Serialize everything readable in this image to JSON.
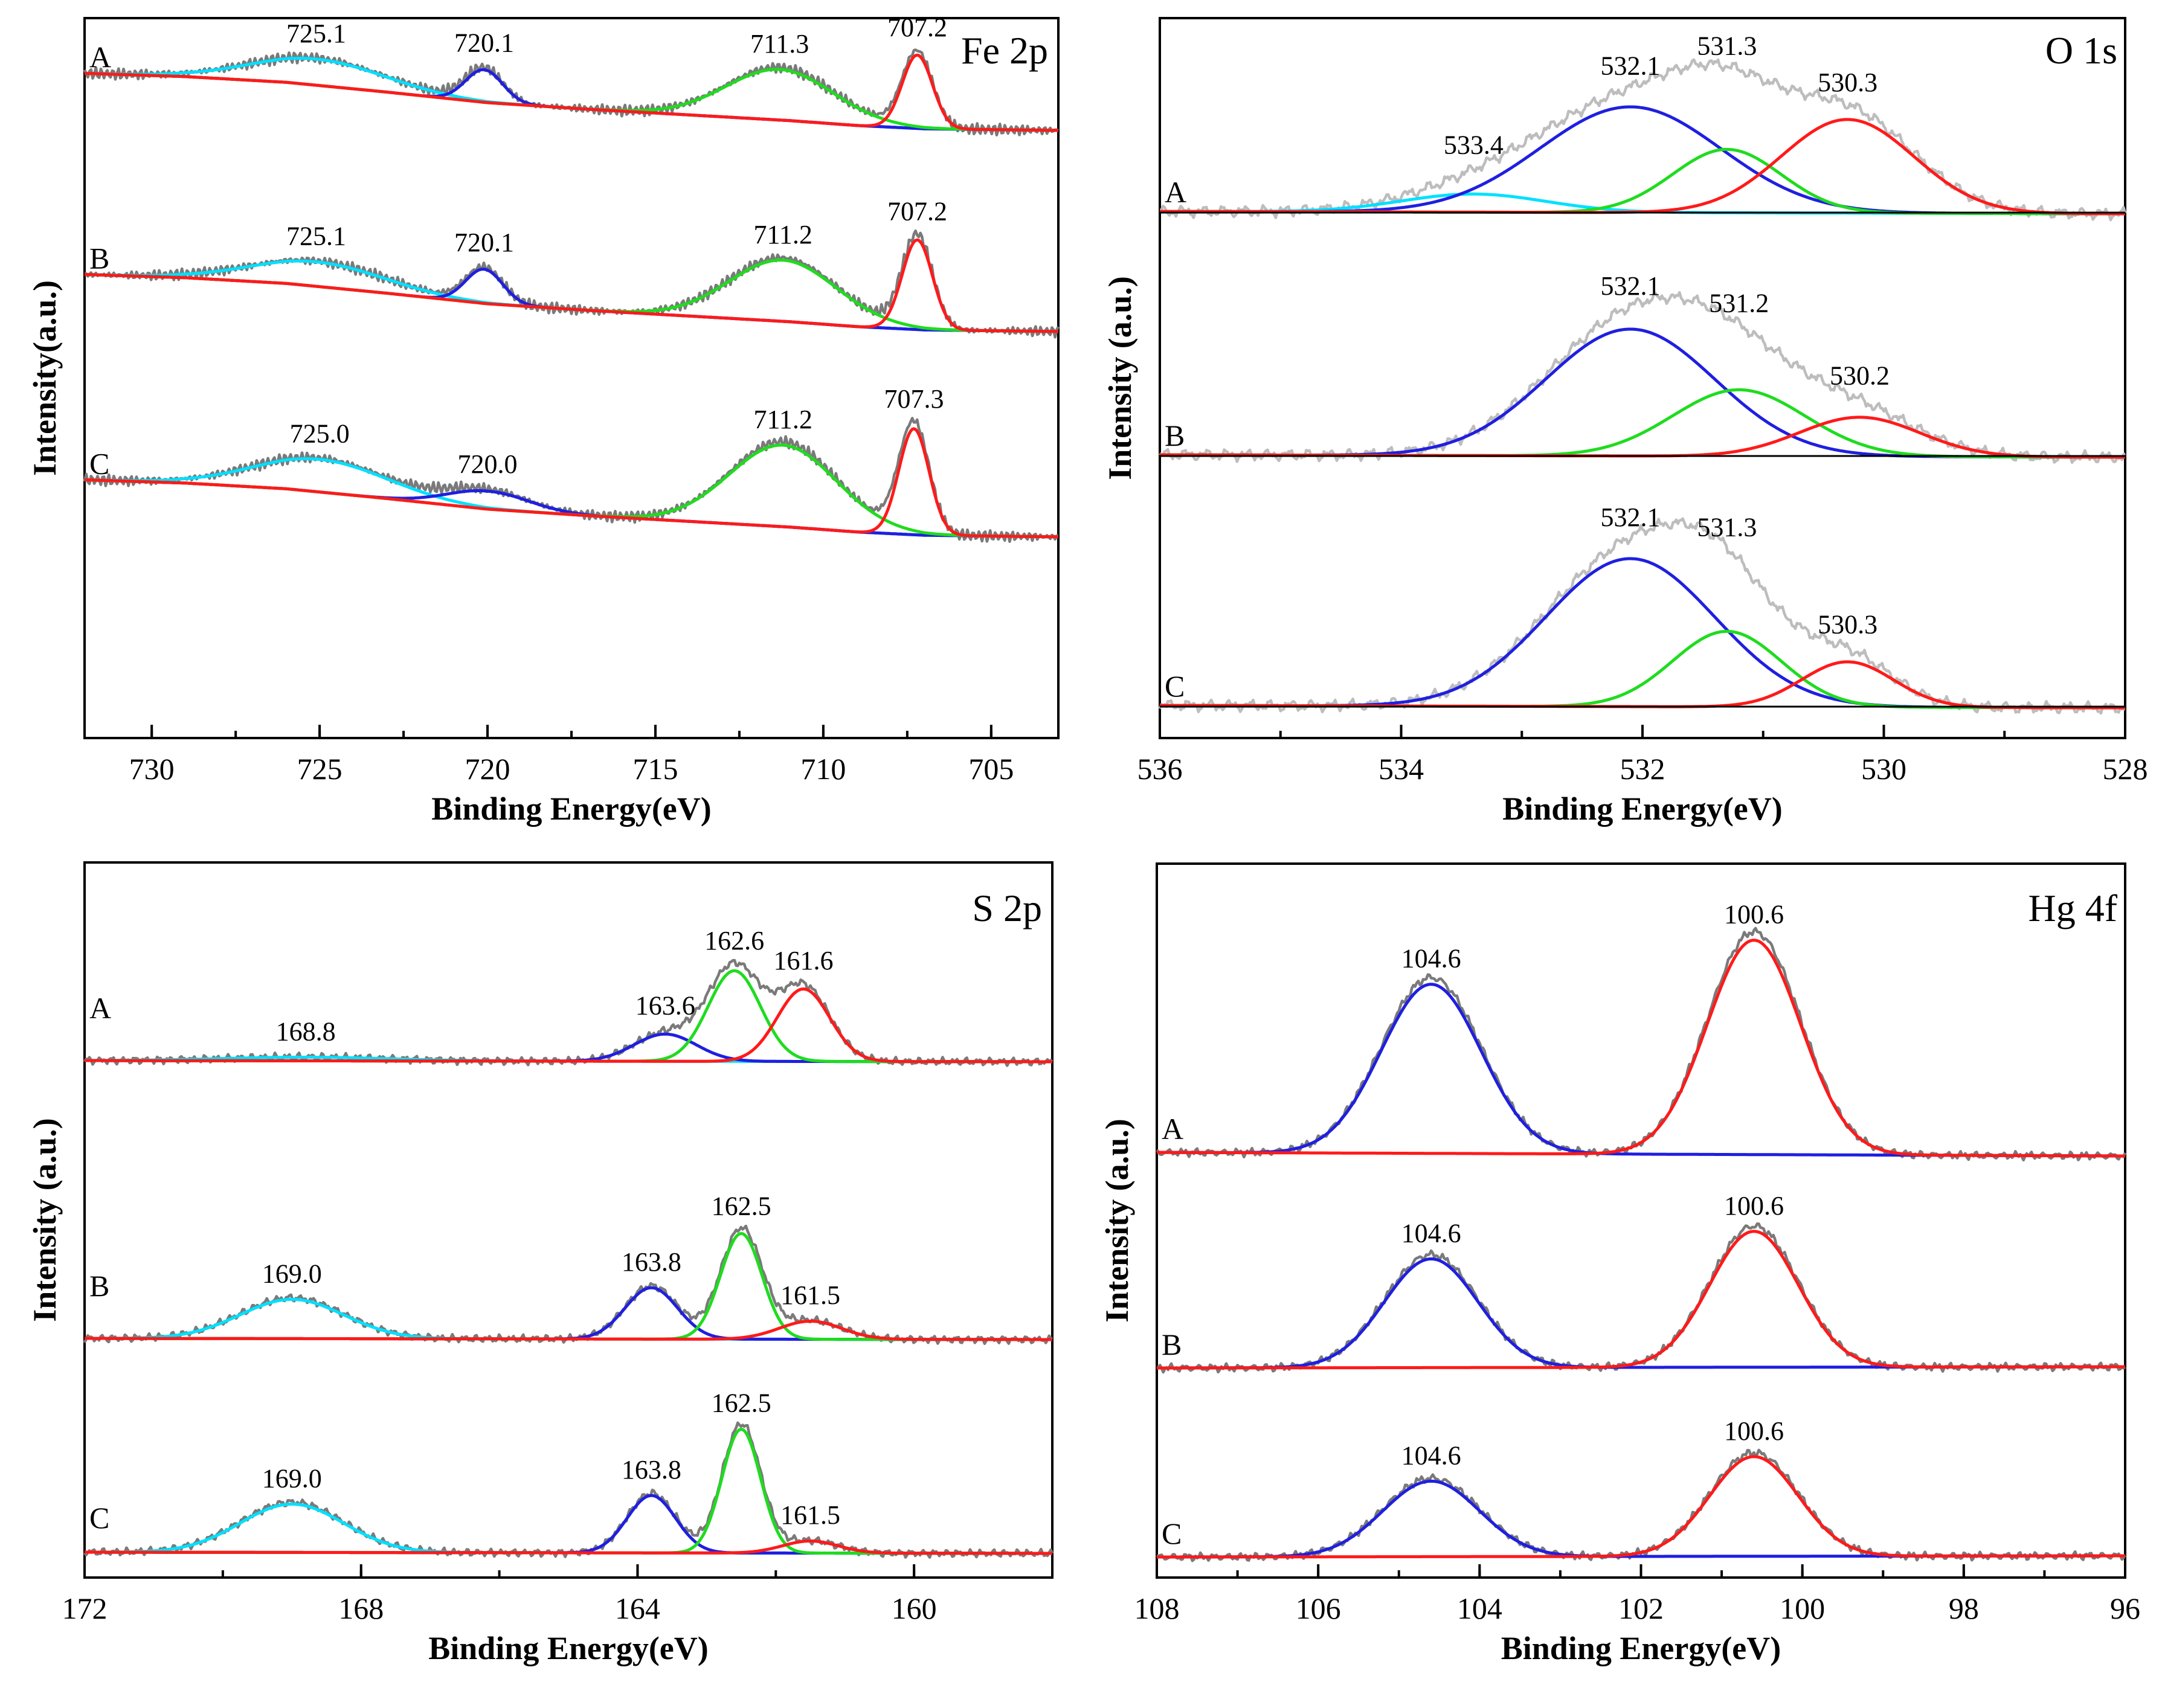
{
  "chart_data": [
    {
      "type": "line",
      "title": "Fe 2p",
      "xlabel": "Binding Energy(eV)",
      "ylabel": "Intensity(a.u.)",
      "xlim": [
        732,
        703
      ],
      "xticks": [
        730,
        725,
        720,
        715,
        710,
        705
      ],
      "rows": [
        {
          "name": "A",
          "background": [
            [
              732,
              0.56
            ],
            [
              729,
              0.52
            ],
            [
              726,
              0.45
            ],
            [
              723,
              0.33
            ],
            [
              720,
              0.2
            ],
            [
              717,
              0.12
            ],
            [
              714,
              0.05
            ],
            [
              711,
              -0.02
            ],
            [
              709,
              -0.08
            ],
            [
              707,
              -0.12
            ],
            [
              703,
              -0.14
            ]
          ],
          "peaks": [
            {
              "center": 725.1,
              "height": 0.32,
              "width": 2.0,
              "color": "#00e0ff"
            },
            {
              "center": 720.1,
              "height": 0.4,
              "width": 0.55,
              "color": "#1f1fe0"
            },
            {
              "center": 711.3,
              "height": 0.62,
              "width": 1.6,
              "color": "#1fdc1f"
            },
            {
              "center": 707.2,
              "height": 0.9,
              "width": 0.45,
              "color": "#ff1a1a"
            }
          ],
          "labels": [
            {
              "x": 725.1,
              "text": "725.1"
            },
            {
              "x": 720.1,
              "text": "720.1"
            },
            {
              "x": 711.3,
              "text": "711.3"
            },
            {
              "x": 707.2,
              "text": "707.2"
            }
          ]
        },
        {
          "name": "B",
          "background": [
            [
              732,
              0.56
            ],
            [
              729,
              0.52
            ],
            [
              726,
              0.45
            ],
            [
              723,
              0.33
            ],
            [
              720,
              0.2
            ],
            [
              717,
              0.12
            ],
            [
              714,
              0.05
            ],
            [
              711,
              -0.02
            ],
            [
              709,
              -0.08
            ],
            [
              707,
              -0.12
            ],
            [
              703,
              -0.14
            ]
          ],
          "peaks": [
            {
              "center": 725.1,
              "height": 0.3,
              "width": 2.0,
              "color": "#00e0ff"
            },
            {
              "center": 720.1,
              "height": 0.42,
              "width": 0.55,
              "color": "#1f1fe0"
            },
            {
              "center": 711.2,
              "height": 0.75,
              "width": 1.6,
              "color": "#1fdc1f"
            },
            {
              "center": 707.2,
              "height": 1.1,
              "width": 0.45,
              "color": "#ff1a1a"
            }
          ],
          "labels": [
            {
              "x": 725.1,
              "text": "725.1"
            },
            {
              "x": 720.1,
              "text": "720.1"
            },
            {
              "x": 711.2,
              "text": "711.2"
            },
            {
              "x": 707.2,
              "text": "707.2"
            }
          ]
        },
        {
          "name": "C",
          "background": [
            [
              732,
              0.56
            ],
            [
              729,
              0.52
            ],
            [
              726,
              0.45
            ],
            [
              723,
              0.33
            ],
            [
              720,
              0.2
            ],
            [
              717,
              0.12
            ],
            [
              714,
              0.05
            ],
            [
              711,
              -0.02
            ],
            [
              709,
              -0.08
            ],
            [
              707,
              -0.12
            ],
            [
              703,
              -0.14
            ]
          ],
          "peaks": [
            {
              "center": 725.0,
              "height": 0.4,
              "width": 2.0,
              "color": "#00e0ff"
            },
            {
              "center": 720.0,
              "height": 0.22,
              "width": 1.2,
              "color": "#1f1fe0"
            },
            {
              "center": 711.2,
              "height": 1.0,
              "width": 1.6,
              "color": "#1fdc1f"
            },
            {
              "center": 707.3,
              "height": 1.3,
              "width": 0.45,
              "color": "#ff1a1a"
            }
          ],
          "labels": [
            {
              "x": 725.0,
              "text": "725.0"
            },
            {
              "x": 720.0,
              "text": "720.0"
            },
            {
              "x": 711.2,
              "text": "711.2"
            },
            {
              "x": 707.3,
              "text": "707.3"
            }
          ]
        }
      ]
    },
    {
      "type": "line",
      "title": "O 1s",
      "xlabel": "Binding Energy(eV)",
      "ylabel": "Intensity (a.u.)",
      "xlim": [
        536,
        528
      ],
      "xticks": [
        536,
        534,
        532,
        530,
        528
      ],
      "rows": [
        {
          "name": "A",
          "background": [
            [
              536,
              0.02
            ],
            [
              528,
              -0.02
            ]
          ],
          "peaks": [
            {
              "center": 533.4,
              "height": 0.3,
              "width": 0.6,
              "color": "#00e0ff"
            },
            {
              "center": 532.1,
              "height": 1.75,
              "width": 0.75,
              "color": "#1f1fe0"
            },
            {
              "center": 531.3,
              "height": 1.05,
              "width": 0.45,
              "color": "#1fdc1f"
            },
            {
              "center": 530.3,
              "height": 1.55,
              "width": 0.55,
              "color": "#ff1a1a"
            }
          ],
          "labels": [
            {
              "x": 533.4,
              "text": "533.4"
            },
            {
              "x": 532.1,
              "text": "532.1"
            },
            {
              "x": 531.3,
              "text": "531.3"
            },
            {
              "x": 530.3,
              "text": "530.3"
            }
          ]
        },
        {
          "name": "B",
          "background": [
            [
              536,
              0.02
            ],
            [
              528,
              -0.02
            ]
          ],
          "peaks": [
            {
              "center": 532.1,
              "height": 2.1,
              "width": 0.7,
              "color": "#1f1fe0"
            },
            {
              "center": 531.2,
              "height": 1.1,
              "width": 0.55,
              "color": "#1fdc1f"
            },
            {
              "center": 530.2,
              "height": 0.65,
              "width": 0.5,
              "color": "#ff1a1a"
            }
          ],
          "labels": [
            {
              "x": 532.1,
              "text": "532.1"
            },
            {
              "x": 531.2,
              "text": "531.2"
            },
            {
              "x": 530.2,
              "text": "530.2"
            }
          ]
        },
        {
          "name": "C",
          "background": [
            [
              536,
              0.02
            ],
            [
              528,
              -0.02
            ]
          ],
          "peaks": [
            {
              "center": 532.1,
              "height": 2.45,
              "width": 0.7,
              "color": "#1f1fe0"
            },
            {
              "center": 531.3,
              "height": 1.25,
              "width": 0.45,
              "color": "#1fdc1f"
            },
            {
              "center": 530.3,
              "height": 0.75,
              "width": 0.38,
              "color": "#ff1a1a"
            }
          ],
          "labels": [
            {
              "x": 532.1,
              "text": "532.1"
            },
            {
              "x": 531.3,
              "text": "531.3"
            },
            {
              "x": 530.3,
              "text": "530.3"
            }
          ]
        }
      ]
    },
    {
      "type": "line",
      "title": "S 2p",
      "xlabel": "Binding Energy(eV)",
      "ylabel": "Intensity (a.u.)",
      "xlim": [
        172,
        158
      ],
      "xticks": [
        172,
        168,
        164,
        160
      ],
      "rows": [
        {
          "name": "A",
          "background": [
            [
              172,
              0.02
            ],
            [
              158,
              0.0
            ]
          ],
          "peaks": [
            {
              "center": 168.8,
              "height": 0.06,
              "width": 1.2,
              "color": "#00e0ff"
            },
            {
              "center": 163.6,
              "height": 0.45,
              "width": 0.45,
              "color": "#1f1fe0"
            },
            {
              "center": 162.6,
              "height": 1.5,
              "width": 0.38,
              "color": "#1fdc1f"
            },
            {
              "center": 161.6,
              "height": 1.2,
              "width": 0.38,
              "color": "#ff1a1a"
            }
          ],
          "labels": [
            {
              "x": 168.8,
              "text": "168.8"
            },
            {
              "x": 163.6,
              "text": "163.6"
            },
            {
              "x": 162.6,
              "text": "162.6"
            },
            {
              "x": 161.6,
              "text": "161.6"
            }
          ]
        },
        {
          "name": "B",
          "background": [
            [
              172,
              0.02
            ],
            [
              158,
              0.0
            ]
          ],
          "peaks": [
            {
              "center": 169.0,
              "height": 0.65,
              "width": 0.75,
              "color": "#00e0ff"
            },
            {
              "center": 163.8,
              "height": 0.85,
              "width": 0.38,
              "color": "#1f1fe0"
            },
            {
              "center": 162.5,
              "height": 1.75,
              "width": 0.3,
              "color": "#1fdc1f"
            },
            {
              "center": 161.5,
              "height": 0.3,
              "width": 0.45,
              "color": "#ff1a1a"
            }
          ],
          "labels": [
            {
              "x": 169.0,
              "text": "169.0"
            },
            {
              "x": 163.8,
              "text": "163.8"
            },
            {
              "x": 162.5,
              "text": "162.5"
            },
            {
              "x": 161.5,
              "text": "161.5"
            }
          ]
        },
        {
          "name": "C",
          "background": [
            [
              172,
              0.02
            ],
            [
              158,
              0.0
            ]
          ],
          "peaks": [
            {
              "center": 169.0,
              "height": 0.8,
              "width": 0.75,
              "color": "#00e0ff"
            },
            {
              "center": 163.8,
              "height": 0.95,
              "width": 0.35,
              "color": "#1f1fe0"
            },
            {
              "center": 162.5,
              "height": 2.05,
              "width": 0.28,
              "color": "#1fdc1f"
            },
            {
              "center": 161.5,
              "height": 0.2,
              "width": 0.4,
              "color": "#ff1a1a"
            }
          ],
          "labels": [
            {
              "x": 169.0,
              "text": "169.0"
            },
            {
              "x": 163.8,
              "text": "163.8"
            },
            {
              "x": 162.5,
              "text": "162.5"
            },
            {
              "x": 161.5,
              "text": "161.5"
            }
          ]
        }
      ]
    },
    {
      "type": "line",
      "title": "Hg 4f",
      "xlabel": "Binding Energy(eV)",
      "ylabel": "Intensity (a.u.)",
      "xlim": [
        108,
        96
      ],
      "xticks": [
        108,
        106,
        104,
        102,
        100,
        98,
        96
      ],
      "rows": [
        {
          "name": "A",
          "background": [
            [
              108,
              0.02
            ],
            [
              96,
              -0.04
            ]
          ],
          "peaks": [
            {
              "center": 104.6,
              "height": 2.8,
              "width": 0.62,
              "color": "#1f1fe0"
            },
            {
              "center": 100.6,
              "height": 3.55,
              "width": 0.58,
              "color": "#ff1a1a"
            }
          ],
          "labels": [
            {
              "x": 104.6,
              "text": "104.6"
            },
            {
              "x": 100.6,
              "text": "100.6"
            }
          ]
        },
        {
          "name": "B",
          "background": [
            [
              108,
              0.0
            ],
            [
              96,
              0.02
            ]
          ],
          "peaks": [
            {
              "center": 104.6,
              "height": 1.8,
              "width": 0.58,
              "color": "#1f1fe0"
            },
            {
              "center": 100.6,
              "height": 2.25,
              "width": 0.55,
              "color": "#ff1a1a"
            }
          ],
          "labels": [
            {
              "x": 104.6,
              "text": "104.6"
            },
            {
              "x": 100.6,
              "text": "100.6"
            }
          ]
        },
        {
          "name": "C",
          "background": [
            [
              108,
              0.0
            ],
            [
              96,
              0.02
            ]
          ],
          "peaks": [
            {
              "center": 104.6,
              "height": 1.25,
              "width": 0.6,
              "color": "#1f1fe0"
            },
            {
              "center": 100.6,
              "height": 1.65,
              "width": 0.55,
              "color": "#ff1a1a"
            }
          ],
          "labels": [
            {
              "x": 104.6,
              "text": "104.6"
            },
            {
              "x": 100.6,
              "text": "100.6"
            }
          ]
        }
      ]
    }
  ]
}
